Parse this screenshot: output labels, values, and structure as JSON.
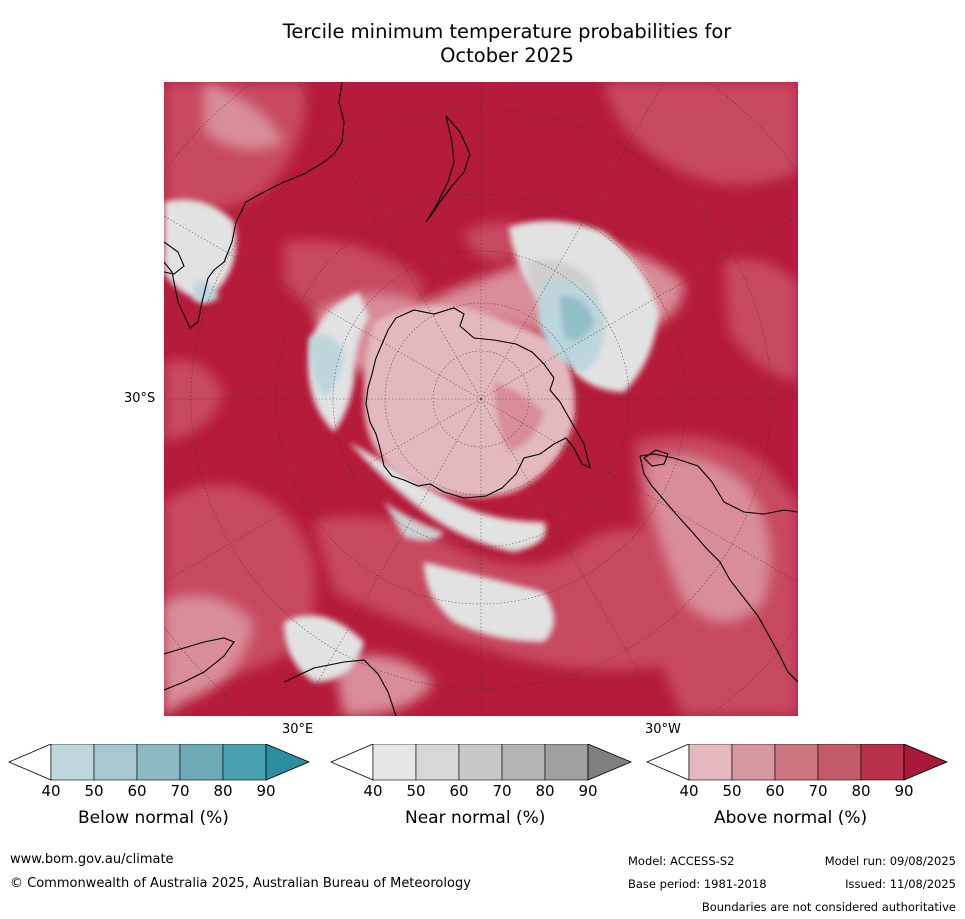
{
  "title": {
    "line1": "Tercile minimum temperature probabilities for",
    "line2": "October 2025"
  },
  "map": {
    "projection": "south-polar stereographic",
    "lat_label": "30°S",
    "lon_labels": [
      "30°E",
      "30°W"
    ],
    "colors": {
      "above_strong": "#b51b3a",
      "above_mid": "#c74a61",
      "above_light": "#d88d98",
      "above_pale": "#e3b8be",
      "near_pale": "#e2e2e2",
      "near_mid": "#cfcfcf",
      "below_pale": "#bcd6dc",
      "below_mid": "#92bec7",
      "land_outline": "#000000"
    }
  },
  "colorbars": [
    {
      "label": "Below normal (%)",
      "ticks": [
        "40",
        "50",
        "60",
        "70",
        "80",
        "90"
      ],
      "colors": [
        "#bed6dc",
        "#a6c8cf",
        "#8db9c3",
        "#6eaab6",
        "#48a0b0",
        "#2a8ea0"
      ]
    },
    {
      "label": "Near normal (%)",
      "ticks": [
        "40",
        "50",
        "60",
        "70",
        "80",
        "90"
      ],
      "colors": [
        "#e6e6e6",
        "#d7d7d7",
        "#c8c8c8",
        "#b4b4b4",
        "#a0a0a0",
        "#7f7f7f"
      ]
    },
    {
      "label": "Above normal (%)",
      "ticks": [
        "40",
        "50",
        "60",
        "70",
        "80",
        "90"
      ],
      "colors": [
        "#e4b8be",
        "#d6989f",
        "#cb7680",
        "#c35a68",
        "#b9304a",
        "#a8193a"
      ]
    }
  ],
  "footer": {
    "url": "www.bom.gov.au/climate",
    "copyright": "© Commonwealth of Australia 2025, Australian Bureau of Meteorology",
    "model": "Model: ACCESS-S2",
    "model_run": "Model run: 09/08/2025",
    "base_period": "Base period: 1981-2018",
    "issued": "Issued: 11/08/2025",
    "disclaimer": "Boundaries are not considered authoritative"
  }
}
